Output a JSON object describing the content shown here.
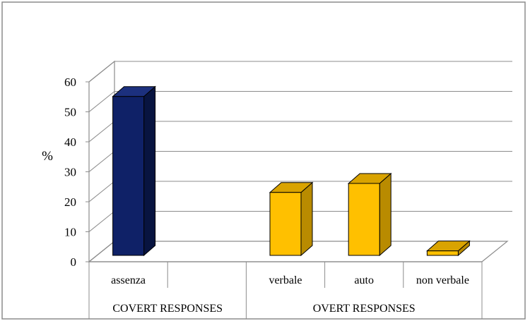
{
  "chart_data": {
    "type": "bar",
    "title": "",
    "ylabel": "%",
    "xlabel": "",
    "ylim": [
      0,
      60
    ],
    "yticks": [
      0,
      10,
      20,
      30,
      40,
      50,
      60
    ],
    "grid": true,
    "legend": "none",
    "three_d": true,
    "categories": [
      "assenza",
      "",
      "verbale",
      "auto",
      "non verbale"
    ],
    "values": [
      53,
      0,
      21,
      24,
      1.5
    ],
    "groups": [
      {
        "label": "COVERT RESPONSES",
        "categories": [
          "assenza",
          ""
        ]
      },
      {
        "label": "OVERT RESPONSES",
        "categories": [
          "verbale",
          "auto",
          "non verbale"
        ]
      }
    ],
    "colors": {
      "covert_front": "#0f2167",
      "covert_side": "#081440",
      "covert_top": "#1c307e",
      "overt_front": "#ffc000",
      "overt_side": "#b98b00",
      "overt_top": "#d9a300"
    }
  }
}
